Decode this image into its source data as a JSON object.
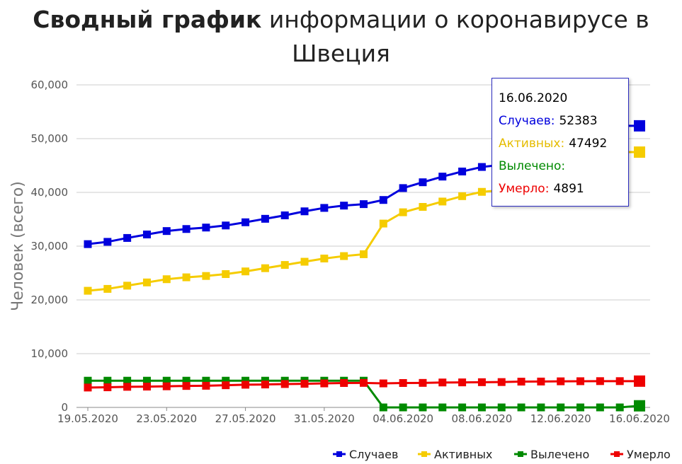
{
  "title": {
    "bold": "Сводный график",
    "rest": "информации о коронавирусе в Швеция"
  },
  "chart_data": {
    "type": "line",
    "ylabel": "Человек (всего)",
    "ylim": [
      0,
      60000
    ],
    "yticks": [
      "0",
      "10,000",
      "20,000",
      "30,000",
      "40,000",
      "50,000",
      "60,000"
    ],
    "xticks": [
      "19.05.2020",
      "23.05.2020",
      "27.05.2020",
      "31.05.2020",
      "04.06.2020",
      "08.06.2020",
      "12.06.2020",
      "16.06.2020"
    ],
    "x": [
      "19.05.2020",
      "20.05.2020",
      "21.05.2020",
      "22.05.2020",
      "23.05.2020",
      "24.05.2020",
      "25.05.2020",
      "26.05.2020",
      "27.05.2020",
      "28.05.2020",
      "29.05.2020",
      "30.05.2020",
      "31.05.2020",
      "01.06.2020",
      "02.06.2020",
      "03.06.2020",
      "04.06.2020",
      "05.06.2020",
      "06.06.2020",
      "07.06.2020",
      "08.06.2020",
      "09.06.2020",
      "10.06.2020",
      "11.06.2020",
      "12.06.2020",
      "13.06.2020",
      "14.06.2020",
      "15.06.2020",
      "16.06.2020"
    ],
    "grid": true,
    "legend_position": "bottom-right",
    "series": [
      {
        "name": "Случаев",
        "color": "#0000dd",
        "values": [
          30377,
          30799,
          31523,
          32172,
          32809,
          33188,
          33459,
          33843,
          34440,
          35088,
          35727,
          36476,
          37113,
          37542,
          37814,
          38589,
          40803,
          41883,
          42939,
          43887,
          44730,
          45133,
          46814,
          48288,
          49684,
          51014,
          51614,
          52383,
          52383
        ]
      },
      {
        "name": "Активных",
        "color": "#f5cc00",
        "values": [
          21700,
          22050,
          22650,
          23250,
          23850,
          24200,
          24450,
          24800,
          25300,
          25900,
          26500,
          27100,
          27700,
          28150,
          28500,
          34200,
          36300,
          37300,
          38300,
          39300,
          40100,
          40400,
          41900,
          43300,
          44750,
          46000,
          47000,
          47492,
          47492
        ]
      },
      {
        "name": "Вылечено",
        "color": "#008a00",
        "values": [
          4971,
          4971,
          4971,
          4971,
          4971,
          4971,
          4971,
          4971,
          4971,
          4971,
          4971,
          4971,
          4971,
          4971,
          4971,
          0,
          0,
          0,
          0,
          0,
          0,
          0,
          0,
          0,
          0,
          0,
          0,
          0,
          300
        ]
      },
      {
        "name": "Умерло",
        "color": "#ee0000",
        "values": [
          3698,
          3743,
          3831,
          3871,
          3925,
          3992,
          4029,
          4125,
          4220,
          4266,
          4350,
          4395,
          4468,
          4542,
          4562,
          4468,
          4542,
          4562,
          4639,
          4656,
          4694,
          4717,
          4795,
          4814,
          4854,
          4874,
          4891,
          4891,
          4891
        ]
      }
    ]
  },
  "tooltip": {
    "date": "16.06.2020",
    "rows": [
      {
        "label": "Случаев:",
        "value": "52383",
        "color": "#0000dd"
      },
      {
        "label": "Активных:",
        "value": "47492",
        "color": "#f5cc00"
      },
      {
        "label": "Вылечено:",
        "value": "",
        "color": "#008a00"
      },
      {
        "label": "Умерло:",
        "value": "4891",
        "color": "#ee0000"
      }
    ]
  }
}
